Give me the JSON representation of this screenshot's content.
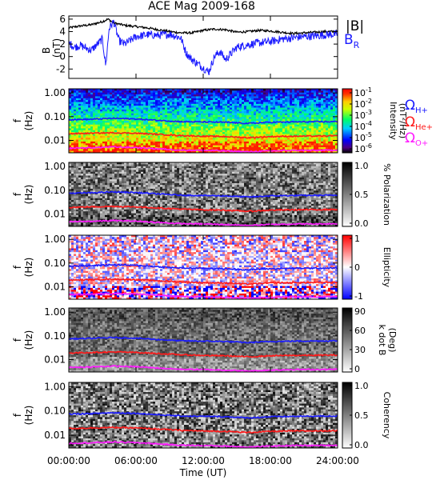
{
  "title": "ACE Mag 2009-168",
  "x_axis": {
    "label": "Time (UT)",
    "ticks": [
      "00:00:00",
      "06:00:00",
      "12:00:00",
      "18:00:00",
      "24:00:00"
    ],
    "range_hours": [
      0,
      24
    ]
  },
  "colors": {
    "babs": "#000000",
    "br": "#1a1aff",
    "h_gyro": "#1a1aff",
    "he_gyro": "#ff1a1a",
    "o_gyro": "#ff1aff"
  },
  "panel_b": {
    "ylabel_top": "B",
    "ylabel_bottom": "(nT)",
    "yticks": [
      "6",
      "4",
      "2",
      "0",
      "-2"
    ],
    "legend_babs": "|B|",
    "legend_br_main": "B",
    "legend_br_sub": "R"
  },
  "freq_axis": {
    "ylabel_top": "f",
    "ylabel_bottom": "(Hz)",
    "yticks": [
      "1.00",
      "0.10",
      "0.01"
    ]
  },
  "panel_intensity": {
    "cbar_ticks": [
      "10",
      "10",
      "10",
      "10",
      "10",
      "10"
    ],
    "cbar_exps": [
      "-1",
      "-2",
      "-3",
      "-4",
      "-5",
      "-6"
    ],
    "cbar_label": "Intensity",
    "cbar_label2": "(nT²/Hz)",
    "legend_h_main": "Ω",
    "legend_h_sub": "H+",
    "legend_he_main": "Ω",
    "legend_he_sub": "He+",
    "legend_o_main": "Ω",
    "legend_o_sub": "O+"
  },
  "panel_polarization": {
    "cbar_ticks": [
      "1.0",
      "0.5",
      "0.0"
    ],
    "cbar_label": "% Polarization"
  },
  "panel_ellipticity": {
    "cbar_ticks": [
      "1",
      "0",
      "-1"
    ],
    "cbar_label": "Ellipticity"
  },
  "panel_kdotb": {
    "cbar_ticks": [
      "90",
      "60",
      "30",
      "0"
    ],
    "cbar_label": "k dot B",
    "cbar_label2": "(Deg)"
  },
  "panel_coherency": {
    "cbar_ticks": [
      "1.0",
      "0.5",
      "0.0"
    ],
    "cbar_label": "Coherency"
  },
  "chart_data": [
    {
      "type": "line",
      "title": "ACE Mag 2009-168",
      "xlabel": "Time (UT)",
      "ylabel": "B (nT)",
      "xlim": [
        0,
        24
      ],
      "ylim": [
        -3.5,
        6.5
      ],
      "series": [
        {
          "name": "|B|",
          "x": [
            0,
            1,
            2,
            3,
            3.5,
            4,
            5,
            6,
            7,
            8,
            9,
            10,
            11,
            12,
            13,
            14,
            15,
            16,
            17,
            18,
            19,
            20,
            21,
            22,
            23,
            24
          ],
          "values": [
            4.6,
            4.9,
            5.1,
            5.6,
            6.0,
            5.4,
            5.0,
            4.8,
            4.6,
            4.3,
            4.0,
            3.8,
            3.8,
            4.2,
            4.4,
            4.3,
            3.9,
            4.0,
            4.2,
            4.1,
            3.9,
            3.7,
            3.8,
            3.9,
            4.0,
            4.0
          ]
        },
        {
          "name": "B_R",
          "x": [
            0,
            0.5,
            1,
            2,
            3,
            3.3,
            3.6,
            4,
            4.5,
            5,
            6,
            7,
            8,
            9,
            10,
            10.5,
            11,
            12,
            12.5,
            13,
            13.5,
            14,
            15,
            16,
            17,
            18,
            19,
            20,
            21,
            22,
            23,
            24
          ],
          "values": [
            2.2,
            1.5,
            1.8,
            1.0,
            2.8,
            -1.5,
            4.5,
            5.6,
            2.5,
            2.0,
            3.2,
            3.5,
            3.4,
            3.6,
            3.0,
            0.5,
            -0.5,
            -1.8,
            -2.5,
            0.0,
            0.8,
            -0.5,
            1.5,
            1.9,
            2.2,
            2.4,
            2.8,
            3.0,
            3.2,
            3.3,
            3.5,
            3.6
          ]
        }
      ]
    },
    {
      "type": "heatmap",
      "title": "Intensity",
      "xlabel": "Time (UT)",
      "ylabel": "f (Hz)",
      "scale": "log",
      "ylim": [
        0.003,
        1.5
      ],
      "xlim": [
        0,
        24
      ],
      "colorbar": {
        "label": "Intensity (nT²/Hz)",
        "range": [
          1e-06,
          0.1
        ],
        "scale": "log"
      },
      "series": [
        {
          "name": "ΩH+",
          "x": [
            0,
            2,
            4,
            6,
            8,
            10,
            12,
            14,
            16,
            18,
            20,
            22,
            24
          ],
          "values": [
            0.075,
            0.078,
            0.085,
            0.08,
            0.07,
            0.062,
            0.06,
            0.058,
            0.052,
            0.058,
            0.06,
            0.061,
            0.062
          ]
        },
        {
          "name": "ΩHe+",
          "x": [
            0,
            2,
            4,
            6,
            8,
            10,
            12,
            14,
            16,
            18,
            20,
            22,
            24
          ],
          "values": [
            0.019,
            0.02,
            0.021,
            0.02,
            0.018,
            0.016,
            0.015,
            0.0145,
            0.013,
            0.0145,
            0.015,
            0.0152,
            0.0155
          ]
        },
        {
          "name": "ΩO+",
          "x": [
            0,
            2,
            4,
            6,
            8,
            10,
            12,
            14,
            16,
            18,
            20,
            22,
            24
          ],
          "values": [
            0.0047,
            0.0049,
            0.0053,
            0.005,
            0.0044,
            0.0039,
            0.0038,
            0.0036,
            0.0033,
            0.0036,
            0.0038,
            0.0038,
            0.0039
          ]
        }
      ]
    },
    {
      "type": "heatmap",
      "title": "% Polarization",
      "ylabel": "f (Hz)",
      "scale": "log",
      "colorbar": {
        "label": "% Polarization",
        "range": [
          0,
          1
        ]
      }
    },
    {
      "type": "heatmap",
      "title": "Ellipticity",
      "ylabel": "f (Hz)",
      "scale": "log",
      "colorbar": {
        "label": "Ellipticity",
        "range": [
          -1,
          1
        ]
      }
    },
    {
      "type": "heatmap",
      "title": "k dot B",
      "ylabel": "f (Hz)",
      "scale": "log",
      "colorbar": {
        "label": "k dot B (Deg)",
        "range": [
          0,
          90
        ]
      }
    },
    {
      "type": "heatmap",
      "title": "Coherency",
      "xlabel": "Time (UT)",
      "ylabel": "f (Hz)",
      "scale": "log",
      "colorbar": {
        "label": "Coherency",
        "range": [
          0,
          1
        ]
      }
    }
  ]
}
